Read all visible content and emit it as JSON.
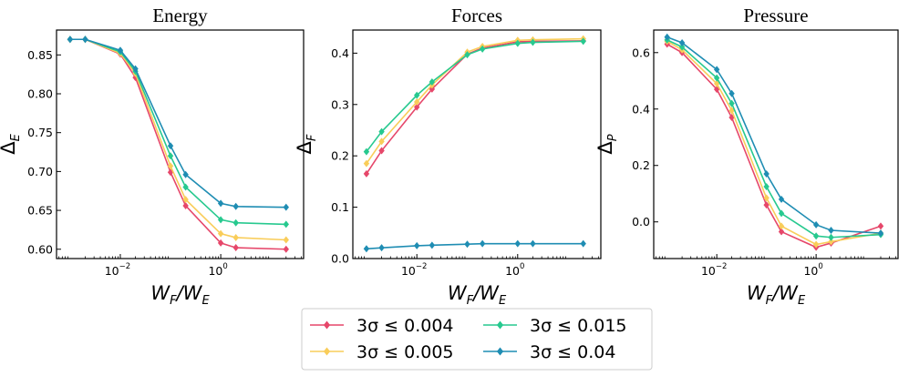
{
  "chart_data": {
    "type": "line",
    "xscale": "log",
    "shared_xlabel": "W_F/W_E",
    "legend": {
      "position": "bottom-center",
      "entries": [
        {
          "label": "3σ ≤ 0.004",
          "color": "#e6476a"
        },
        {
          "label": "3σ ≤ 0.005",
          "color": "#f9cd5a"
        },
        {
          "label": "3σ ≤ 0.015",
          "color": "#27c98f"
        },
        {
          "label": "3σ ≤ 0.04",
          "color": "#1f8db3"
        }
      ]
    },
    "x": [
      0.001,
      0.002,
      0.01,
      0.02,
      0.1,
      0.2,
      1,
      2,
      20
    ],
    "panels": [
      {
        "title": "Energy",
        "ylabel_main": "Δ",
        "ylabel_sub": "E",
        "ylim": [
          0.588,
          0.882
        ],
        "yticks": [
          0.6,
          0.65,
          0.7,
          0.75,
          0.8,
          0.85
        ],
        "ytick_labels": [
          "0.60",
          "0.65",
          "0.70",
          "0.75",
          "0.80",
          "0.85"
        ],
        "xtick_labels": [
          {
            "value": 0.01,
            "base": "10",
            "exp": "−2"
          },
          {
            "value": 1,
            "base": "10",
            "exp": "0"
          }
        ],
        "series": [
          {
            "name": "3σ ≤ 0.004",
            "values": [
              0.87,
              0.87,
              0.851,
              0.821,
              0.699,
              0.656,
              0.608,
              0.602,
              0.6
            ]
          },
          {
            "name": "3σ ≤ 0.005",
            "values": [
              0.87,
              0.87,
              0.852,
              0.826,
              0.707,
              0.664,
              0.62,
              0.615,
              0.612
            ]
          },
          {
            "name": "3σ ≤ 0.015",
            "values": [
              0.87,
              0.87,
              0.854,
              0.829,
              0.72,
              0.68,
              0.638,
              0.634,
              0.632
            ]
          },
          {
            "name": "3σ ≤ 0.04",
            "values": [
              0.87,
              0.87,
              0.856,
              0.832,
              0.733,
              0.696,
              0.659,
              0.655,
              0.654
            ]
          }
        ]
      },
      {
        "title": "Forces",
        "ylabel_main": "Δ",
        "ylabel_sub": "F",
        "ylim": [
          0.0,
          0.445
        ],
        "yticks": [
          0.0,
          0.1,
          0.2,
          0.3,
          0.4
        ],
        "ytick_labels": [
          "0.0",
          "0.1",
          "0.2",
          "0.3",
          "0.4"
        ],
        "xtick_labels": [
          {
            "value": 0.01,
            "base": "10",
            "exp": "−2"
          },
          {
            "value": 1,
            "base": "10",
            "exp": "0"
          }
        ],
        "series": [
          {
            "name": "3σ ≤ 0.004",
            "values": [
              0.165,
              0.21,
              0.295,
              0.33,
              0.398,
              0.41,
              0.422,
              0.423,
              0.424
            ]
          },
          {
            "name": "3σ ≤ 0.005",
            "values": [
              0.185,
              0.228,
              0.305,
              0.338,
              0.402,
              0.413,
              0.425,
              0.426,
              0.428
            ]
          },
          {
            "name": "3σ ≤ 0.015",
            "values": [
              0.208,
              0.247,
              0.318,
              0.344,
              0.397,
              0.408,
              0.419,
              0.421,
              0.423
            ]
          },
          {
            "name": "3σ ≤ 0.04",
            "values": [
              0.019,
              0.021,
              0.025,
              0.026,
              0.028,
              0.029,
              0.029,
              0.029,
              0.029
            ]
          }
        ]
      },
      {
        "title": "Pressure",
        "ylabel_main": "Δ",
        "ylabel_sub": "P",
        "ylim": [
          -0.13,
          0.68
        ],
        "yticks": [
          0.0,
          0.2,
          0.4,
          0.6
        ],
        "ytick_labels": [
          "0.0",
          "0.2",
          "0.4",
          "0.6"
        ],
        "xtick_labels": [
          {
            "value": 0.01,
            "base": "10",
            "exp": "−2"
          },
          {
            "value": 1,
            "base": "10",
            "exp": "0"
          }
        ],
        "series": [
          {
            "name": "3σ ≤ 0.004",
            "values": [
              0.63,
              0.6,
              0.47,
              0.37,
              0.06,
              -0.035,
              -0.09,
              -0.075,
              -0.015
            ]
          },
          {
            "name": "3σ ≤ 0.005",
            "values": [
              0.64,
              0.61,
              0.49,
              0.395,
              0.085,
              -0.015,
              -0.08,
              -0.07,
              -0.04
            ]
          },
          {
            "name": "3σ ≤ 0.015",
            "values": [
              0.645,
              0.62,
              0.51,
              0.42,
              0.125,
              0.03,
              -0.05,
              -0.055,
              -0.045
            ]
          },
          {
            "name": "3σ ≤ 0.04",
            "values": [
              0.655,
              0.635,
              0.54,
              0.455,
              0.17,
              0.08,
              -0.01,
              -0.03,
              -0.04
            ]
          }
        ]
      }
    ]
  }
}
